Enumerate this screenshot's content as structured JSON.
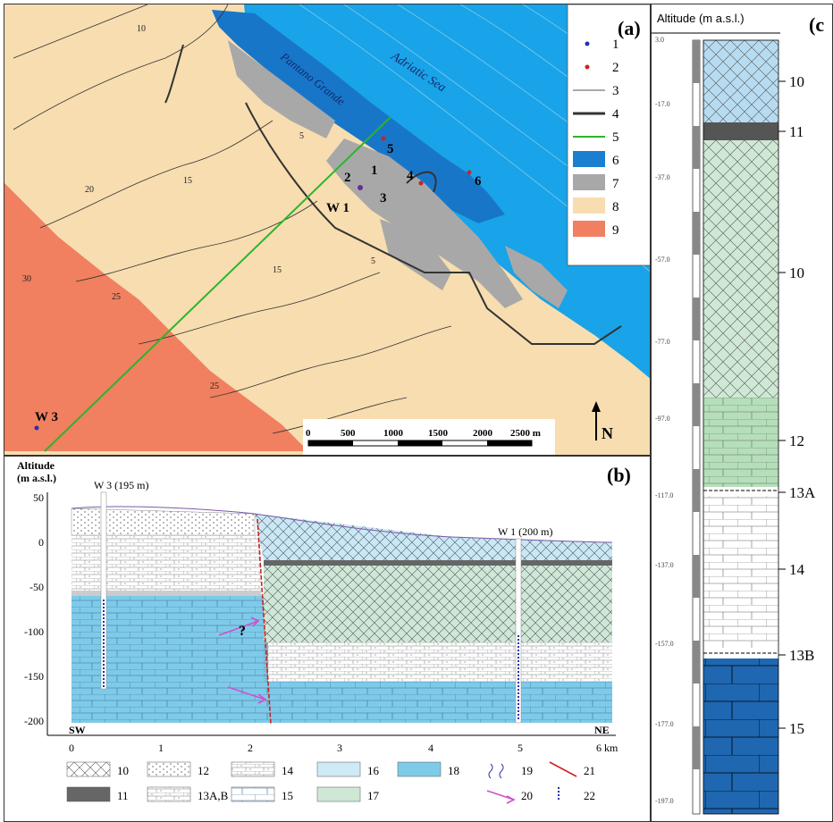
{
  "panel_a": {
    "label": "(a)",
    "sea_label": "Adriatic Sea",
    "lagoon_label": "Pantano Grande",
    "north_label": "N",
    "wells": [
      {
        "name": "W 1"
      },
      {
        "name": "W 3"
      }
    ],
    "sampling_points": [
      "1",
      "2",
      "3",
      "4",
      "5",
      "6"
    ],
    "contours": [
      "5",
      "10",
      "15",
      "20",
      "25",
      "30"
    ],
    "scale_ticks": [
      "0",
      "500",
      "1000",
      "1500",
      "2000",
      "2500 m"
    ],
    "legend": [
      {
        "id": "1",
        "symbol": "blue-dot",
        "color": "#2233aa"
      },
      {
        "id": "2",
        "symbol": "red-dot",
        "color": "#cc2222"
      },
      {
        "id": "3",
        "symbol": "thin-line",
        "color": "#555555"
      },
      {
        "id": "4",
        "symbol": "thick-line",
        "color": "#333333"
      },
      {
        "id": "5",
        "symbol": "green-line",
        "color": "#2bb52b"
      },
      {
        "id": "6",
        "symbol": "box",
        "color": "#1a7fd0"
      },
      {
        "id": "7",
        "symbol": "box",
        "color": "#a8a8a8"
      },
      {
        "id": "8",
        "symbol": "box",
        "color": "#f7ddb0"
      },
      {
        "id": "9",
        "symbol": "box",
        "color": "#f08060"
      }
    ]
  },
  "panel_b": {
    "label": "(b)",
    "y_title_1": "Altitude",
    "y_title_2": "(m a.s.l.)",
    "y_ticks": [
      "50",
      "0",
      "-50",
      "-100",
      "-150",
      "-200"
    ],
    "x_ticks": [
      "0",
      "1",
      "2",
      "3",
      "4",
      "5",
      "6 km"
    ],
    "sw_label": "SW",
    "ne_label": "NE",
    "well_w3": "W 3 (195 m)",
    "well_w1": "W 1 (200 m)",
    "question": "?",
    "legend": [
      {
        "id": "10",
        "pattern": "cross"
      },
      {
        "id": "11",
        "pattern": "dark"
      },
      {
        "id": "12",
        "pattern": "dots"
      },
      {
        "id": "13A,B",
        "pattern": "dashed"
      },
      {
        "id": "14",
        "pattern": "brick-dots"
      },
      {
        "id": "15",
        "pattern": "brick"
      },
      {
        "id": "16",
        "pattern": "lightblue"
      },
      {
        "id": "17",
        "pattern": "lightgreen"
      },
      {
        "id": "18",
        "pattern": "blue"
      },
      {
        "id": "19",
        "pattern": "wiggle"
      },
      {
        "id": "20",
        "pattern": "arrow"
      },
      {
        "id": "21",
        "pattern": "redline"
      },
      {
        "id": "22",
        "pattern": "blueline"
      }
    ]
  },
  "panel_c": {
    "label": "(c",
    "title": "Altitude (m a.s.l.)",
    "depth_ticks": [
      "3.0",
      "-17.0",
      "-37.0",
      "-57.0",
      "-77.0",
      "-97.0",
      "-117.0",
      "-137.0",
      "-157.0",
      "-177.0",
      "-197.0"
    ],
    "unit_labels": [
      "10",
      "11",
      "10",
      "12",
      "13A",
      "14",
      "13B",
      "15"
    ]
  }
}
